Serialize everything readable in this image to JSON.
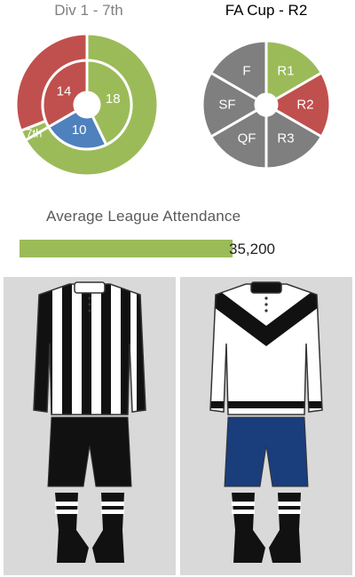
{
  "colors": {
    "green": "#9bbb59",
    "red": "#c0504d",
    "blue": "#4f81bd",
    "grey": "#7f7f7f",
    "kit_black": "#111111",
    "kit_white": "#ffffff",
    "kit_navy": "#1a3d7c",
    "panel_bg": "#d9d9d9"
  },
  "chart_data": [
    {
      "type": "pie",
      "title": "Div 1 - 7th",
      "rings": [
        {
          "name": "outer",
          "slices": [
            {
              "label": "",
              "value": 28,
              "color": "#9bbb59"
            },
            {
              "label": "7th",
              "value": 1,
              "color": "#9bbb59"
            },
            {
              "label": "",
              "value": 13,
              "color": "#c0504d"
            }
          ]
        },
        {
          "name": "inner",
          "slices": [
            {
              "label": "18",
              "value": 18,
              "color": "#9bbb59"
            },
            {
              "label": "10",
              "value": 10,
              "color": "#4f81bd"
            },
            {
              "label": "14",
              "value": 14,
              "color": "#c0504d"
            }
          ]
        }
      ]
    },
    {
      "type": "pie",
      "title": "FA Cup - R2",
      "slices": [
        {
          "label": "R1",
          "value": 1,
          "color": "#9bbb59"
        },
        {
          "label": "R2",
          "value": 1,
          "color": "#c0504d"
        },
        {
          "label": "R3",
          "value": 1,
          "color": "#7f7f7f"
        },
        {
          "label": "QF",
          "value": 1,
          "color": "#7f7f7f"
        },
        {
          "label": "SF",
          "value": 1,
          "color": "#7f7f7f"
        },
        {
          "label": "F",
          "value": 1,
          "color": "#7f7f7f"
        }
      ]
    },
    {
      "type": "bar",
      "title": "Average League Attendance",
      "categories": [
        ""
      ],
      "values": [
        35200
      ],
      "value_label": "35,200",
      "xlim": [
        0,
        57000
      ],
      "color": "#9bbb59"
    }
  ],
  "kits": {
    "home": {
      "name": "home-kit",
      "shirt": "black-white-vertical-stripes",
      "shorts": "#111111",
      "socks": "black-with-white-hoops"
    },
    "away": {
      "name": "away-kit",
      "shirt": "white-with-black-chevron",
      "shorts": "#1a3d7c",
      "socks": "black-with-white-hoops"
    }
  }
}
